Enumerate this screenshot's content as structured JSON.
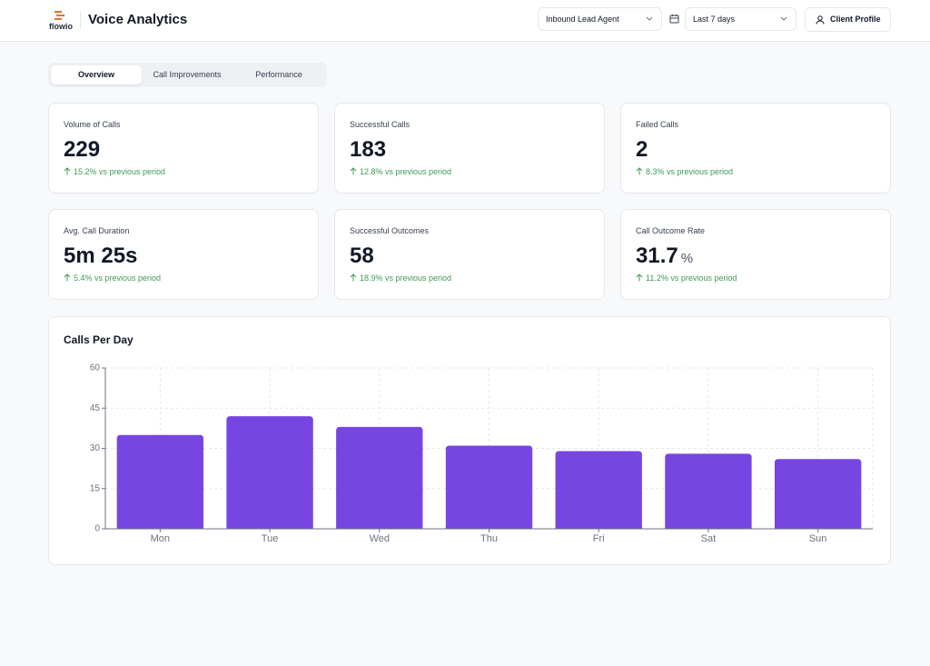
{
  "header": {
    "logo": "flowio",
    "title": "Voice Analytics",
    "agent_select": "Inbound Lead Agent",
    "period_select": "Last 7 days",
    "profile_button": "Client Profile"
  },
  "tabs": [
    "Overview",
    "Call Improvements",
    "Performance"
  ],
  "kpis": [
    {
      "label": "Volume of Calls",
      "value": 229,
      "change": "15.2% vs previous period"
    },
    {
      "label": "Successful Calls",
      "value": 183,
      "change": "12.8% vs previous period"
    },
    {
      "label": "Failed Calls",
      "value": 2,
      "change": "8.3% vs previous period"
    },
    {
      "label": "Avg. Call Duration",
      "value": "5m 25s",
      "change": "5.4% vs previous period"
    },
    {
      "label": "Successful Outcomes",
      "value": 58,
      "change": "18.9% vs previous period"
    },
    {
      "label": "Call Outcome Rate",
      "value": 31.7,
      "unit": "%",
      "change": "11.2% vs previous period"
    }
  ],
  "chart_data": {
    "type": "bar",
    "title": "Calls Per Day",
    "categories": [
      "Mon",
      "Tue",
      "Wed",
      "Thu",
      "Fri",
      "Sat",
      "Sun"
    ],
    "values": [
      35,
      42,
      38,
      31,
      29,
      28,
      26
    ],
    "color": "#7645e2",
    "ylim": [
      0,
      60
    ],
    "yticks": [
      0,
      15,
      30,
      45,
      60
    ],
    "grid": true
  }
}
